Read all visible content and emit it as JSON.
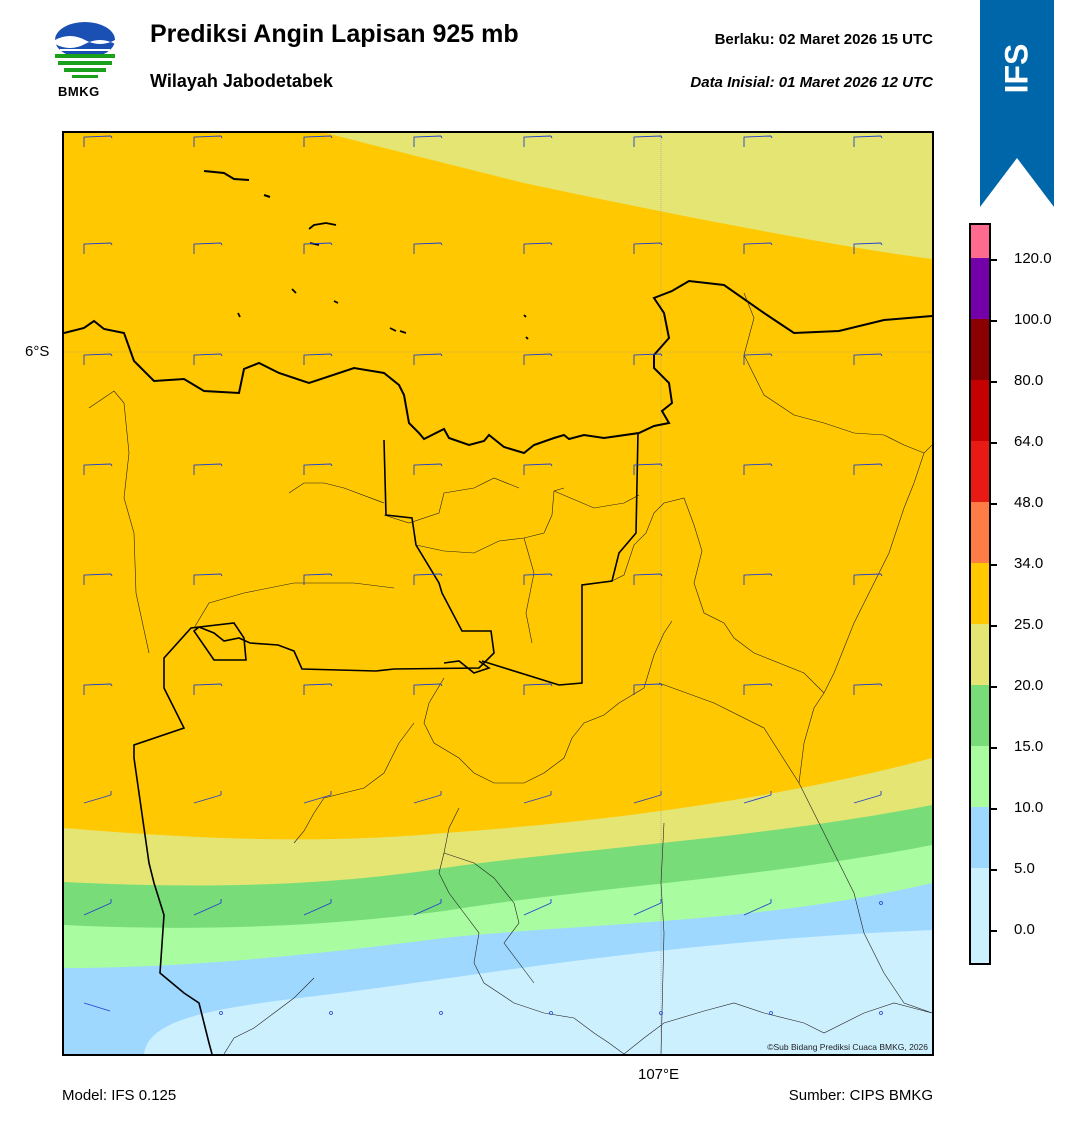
{
  "header": {
    "title": "Prediksi Angin Lapisan 925 mb",
    "subtitle": "Wilayah Jabodetabek",
    "valid_label": "Berlaku:  02 Maret 2026 15 UTC",
    "init_label": "Data Inisial:  01 Maret 2026 12 UTC"
  },
  "logo": {
    "text": "BMKG",
    "icon": "bmkg-logo"
  },
  "badge": {
    "text": "IFS",
    "color": "#0066aa"
  },
  "map": {
    "lat_label": "6°S",
    "lon_label": "107°E",
    "copyright": "©Sub Bidang Prediksi Cuaca BMKG, 2026"
  },
  "colorbar": {
    "ticks": [
      "120.0",
      "100.0",
      "80.0",
      "64.0",
      "48.0",
      "34.0",
      "25.0",
      "20.0",
      "15.0",
      "10.0",
      "5.0",
      "0.0"
    ],
    "colors": [
      "#cdf0ff",
      "#9ed8ff",
      "#a9fda0",
      "#78dd78",
      "#e5e573",
      "#ffc800",
      "#ff7d44",
      "#e81b14",
      "#c40000",
      "#8b0000",
      "#7300a8",
      "#ff6b8f"
    ]
  },
  "footer": {
    "model": "Model: IFS 0.125",
    "source": "Sumber: CIPS BMKG"
  }
}
